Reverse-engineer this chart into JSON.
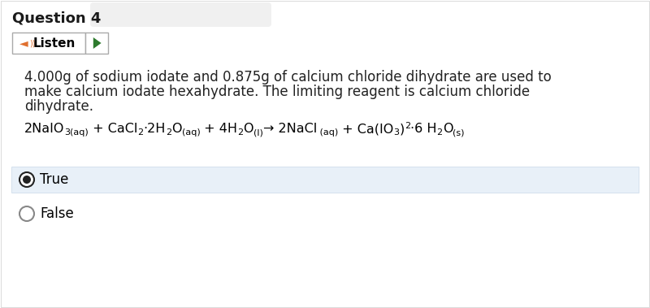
{
  "title": "Question 4",
  "title_fontsize": 13,
  "title_color": "#1a1a1a",
  "title_bg_color": "#f0f0f0",
  "body_text_line1": "4.000g of sodium iodate and 0.875g of calcium chloride dihydrate are used to",
  "body_text_line2": "make calcium iodate hexahydrate. The limiting reagent is calcium chloride",
  "body_text_line3": "dihydrate.",
  "body_fontsize": 12,
  "body_color": "#222222",
  "listen_label": "Listen",
  "listen_fontsize": 11,
  "equation_fontsize": 11.5,
  "equation_sub_fontsize": 8,
  "true_label": "True",
  "false_label": "False",
  "option_fontsize": 12,
  "true_bg_color": "#e8f0f8",
  "bg_color": "#ffffff",
  "radio_fill_color": "#111111",
  "radio_border_color": "#666666",
  "listen_border_color": "#aaaaaa",
  "listen_icon_color": "#e07030",
  "play_color": "#2d7a2d",
  "outer_border_color": "#cccccc"
}
